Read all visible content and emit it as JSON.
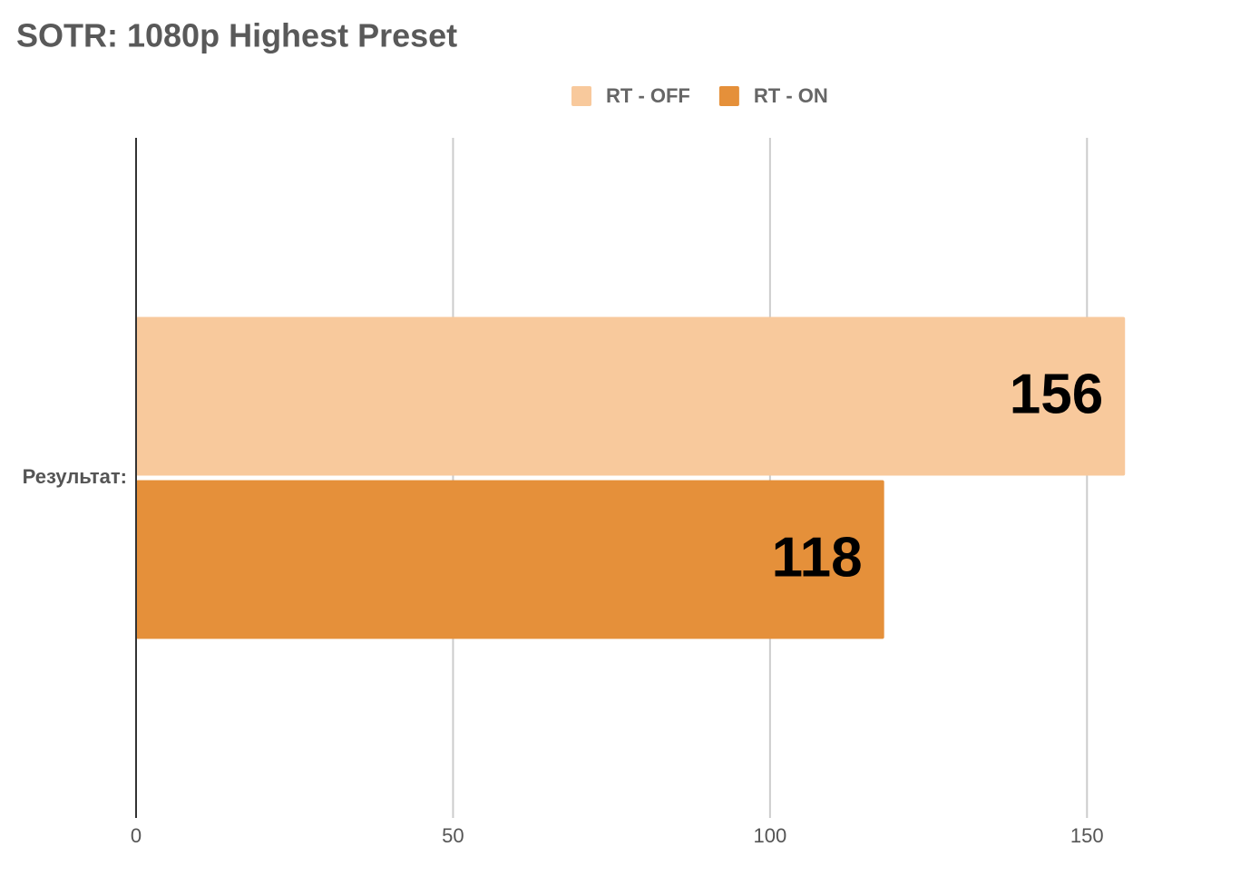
{
  "chart_data": {
    "type": "bar",
    "orientation": "horizontal",
    "title": "SOTR: 1080p Highest Preset",
    "categories": [
      "Результат:"
    ],
    "series": [
      {
        "name": "RT - OFF",
        "color": "#f8c99c",
        "values": [
          156
        ]
      },
      {
        "name": "RT - ON",
        "color": "#e5903a",
        "values": [
          118
        ]
      }
    ],
    "xlim": [
      0,
      175
    ],
    "xticks": [
      0,
      50,
      100,
      150
    ],
    "grid": true,
    "legend": "top"
  }
}
